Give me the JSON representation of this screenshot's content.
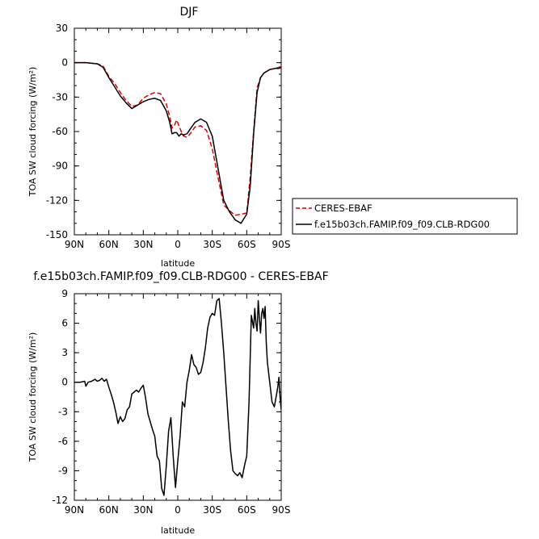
{
  "chart_data": [
    {
      "type": "line",
      "title": "DJF",
      "xlabel": "latitude",
      "ylabel": "TOA SW cloud forcing (W/m²)",
      "xlim": [
        90,
        -90
      ],
      "ylim": [
        -150,
        30
      ],
      "xticks": [
        90,
        60,
        30,
        0,
        -30,
        -60,
        -90
      ],
      "xtick_labels": [
        "90N",
        "60N",
        "30N",
        "0",
        "30S",
        "60S",
        "90S"
      ],
      "yticks": [
        -150,
        -120,
        -90,
        -60,
        -30,
        0,
        30
      ],
      "ytick_labels": [
        "-150",
        "-120",
        "-90",
        "-60",
        "-30",
        "0",
        "30"
      ],
      "legend": "right",
      "series": [
        {
          "name": "CERES-EBAF",
          "color": "#e00000",
          "style": "dashed",
          "x": [
            90,
            80,
            70,
            65,
            60,
            55,
            50,
            45,
            40,
            35,
            30,
            25,
            20,
            15,
            10,
            7,
            5,
            3,
            1,
            -1,
            -3,
            -5,
            -8,
            -10,
            -15,
            -20,
            -25,
            -30,
            -35,
            -40,
            -45,
            -50,
            -55,
            -60,
            -63,
            -66,
            -69,
            -72,
            -75,
            -80,
            -85,
            -88,
            -90
          ],
          "y": [
            0,
            0,
            -1,
            -3,
            -12,
            -18,
            -26,
            -33,
            -38,
            -37,
            -31,
            -28,
            -26,
            -27,
            -36,
            -47,
            -57,
            -55,
            -50,
            -55,
            -60,
            -64,
            -65,
            -63,
            -56,
            -55,
            -59,
            -75,
            -100,
            -124,
            -129,
            -133,
            -132,
            -131,
            -100,
            -60,
            -22,
            -13,
            -9,
            -6,
            -5,
            -4,
            -3
          ]
        },
        {
          "name": "f.e15b03ch.FAMIP.f09_f09.CLB-RDG00",
          "color": "#000000",
          "style": "solid",
          "x": [
            90,
            80,
            70,
            65,
            60,
            55,
            50,
            45,
            40,
            35,
            30,
            25,
            20,
            15,
            10,
            7,
            5,
            3,
            1,
            -1,
            -3,
            -5,
            -8,
            -10,
            -15,
            -20,
            -25,
            -30,
            -35,
            -40,
            -45,
            -50,
            -55,
            -60,
            -63,
            -66,
            -69,
            -72,
            -75,
            -80,
            -85,
            -88,
            -90
          ],
          "y": [
            0,
            0,
            -1,
            -4,
            -13,
            -21,
            -29,
            -35,
            -40,
            -37,
            -34,
            -32,
            -31,
            -33,
            -42,
            -52,
            -62,
            -61,
            -61,
            -64,
            -62,
            -63,
            -62,
            -59,
            -52,
            -49,
            -52,
            -64,
            -92,
            -120,
            -130,
            -137,
            -140,
            -132,
            -108,
            -62,
            -26,
            -13,
            -9,
            -6,
            -5,
            -5,
            -4
          ]
        }
      ]
    },
    {
      "type": "line",
      "title": "f.e15b03ch.FAMIP.f09_f09.CLB-RDG00 - CERES-EBAF",
      "xlabel": "latitude",
      "ylabel": "TOA SW cloud forcing (W/m²)",
      "xlim": [
        90,
        -90
      ],
      "ylim": [
        -12,
        9
      ],
      "xticks": [
        90,
        60,
        30,
        0,
        -30,
        -60,
        -90
      ],
      "xtick_labels": [
        "90N",
        "60N",
        "30N",
        "0",
        "30S",
        "60S",
        "90S"
      ],
      "yticks": [
        -12,
        -9,
        -6,
        -3,
        0,
        3,
        6,
        9
      ],
      "ytick_labels": [
        "-12",
        "-9",
        "-6",
        "-3",
        "0",
        "3",
        "6",
        "9"
      ],
      "series": [
        {
          "color": "#000000",
          "style": "solid",
          "x": [
            90,
            85,
            81,
            80,
            78,
            75,
            72,
            70,
            68,
            66,
            64,
            62,
            60,
            58,
            56,
            54,
            52,
            50,
            48,
            46,
            44,
            42,
            40,
            38,
            36,
            34,
            32,
            30,
            28,
            26,
            24,
            22,
            20,
            18,
            16,
            14,
            12,
            10,
            8,
            6,
            4,
            2,
            0,
            -2,
            -4,
            -6,
            -8,
            -10,
            -12,
            -14,
            -16,
            -18,
            -20,
            -22,
            -24,
            -26,
            -28,
            -30,
            -32,
            -34,
            -36,
            -38,
            -40,
            -42,
            -44,
            -46,
            -48,
            -50,
            -52,
            -54,
            -56,
            -58,
            -60,
            -62,
            -64,
            -66,
            -67,
            -68,
            -69,
            -70,
            -71,
            -72,
            -73,
            -74,
            -75,
            -76,
            -77,
            -78,
            -79,
            -80,
            -81,
            -82,
            -84,
            -86,
            -87,
            -88,
            -89,
            -90
          ],
          "y": [
            0,
            0,
            0.1,
            -0.4,
            0,
            0.1,
            0.3,
            0.1,
            0.2,
            0.4,
            0.1,
            0.3,
            -0.5,
            -1.2,
            -2.0,
            -3.0,
            -4.2,
            -3.5,
            -4.0,
            -3.7,
            -2.8,
            -2.5,
            -1.2,
            -1.0,
            -0.8,
            -1.0,
            -0.6,
            -0.3,
            -1.6,
            -3.2,
            -4.0,
            -4.8,
            -5.5,
            -7.5,
            -8.0,
            -10.8,
            -11.5,
            -8.5,
            -5.0,
            -3.6,
            -7.5,
            -10.7,
            -8.0,
            -5.5,
            -2.0,
            -2.5,
            0,
            1.2,
            2.8,
            1.8,
            1.5,
            0.8,
            1.0,
            2.0,
            3.5,
            5.5,
            6.6,
            7.0,
            6.8,
            8.3,
            8.5,
            6.0,
            3.0,
            -0.5,
            -4.0,
            -7.0,
            -9.0,
            -9.3,
            -9.5,
            -9.2,
            -9.7,
            -8.5,
            -7.5,
            -2.0,
            6.8,
            5.5,
            7.5,
            6.0,
            5.2,
            8.3,
            6.5,
            5.0,
            7.0,
            7.5,
            6.5,
            7.7,
            4.0,
            2.0,
            1.0,
            0,
            -1.0,
            -2.0,
            -2.5,
            -1.2,
            -0.5,
            0.5,
            -1.5,
            -2.8
          ]
        }
      ]
    }
  ]
}
